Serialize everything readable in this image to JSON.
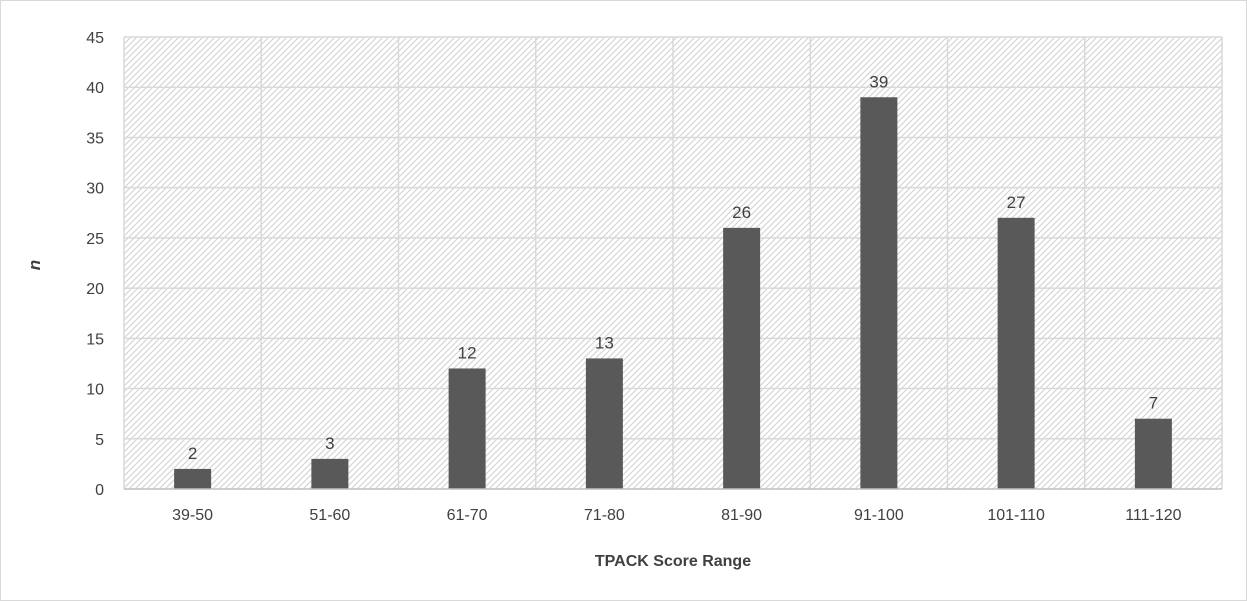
{
  "chart_data": {
    "type": "bar",
    "title": "",
    "xlabel": "TPACK Score Range",
    "ylabel": "n",
    "categories": [
      "39-50",
      "51-60",
      "61-70",
      "71-80",
      "81-90",
      "91-100",
      "101-110",
      "111-120"
    ],
    "values": [
      2,
      3,
      12,
      13,
      26,
      39,
      27,
      7
    ],
    "data_labels": [
      "2",
      "3",
      "12",
      "13",
      "26",
      "39",
      "27",
      "7"
    ],
    "ylim": [
      0,
      45
    ],
    "yticks": [
      0,
      5,
      10,
      15,
      20,
      25,
      30,
      35,
      40,
      45
    ],
    "grid": true,
    "legend": "none",
    "colors": {
      "bar": "#595959",
      "grid": "#d9d9d9",
      "hatch": "#d0d0d0",
      "text": "#404040",
      "axis": "#bfbfbf"
    }
  }
}
